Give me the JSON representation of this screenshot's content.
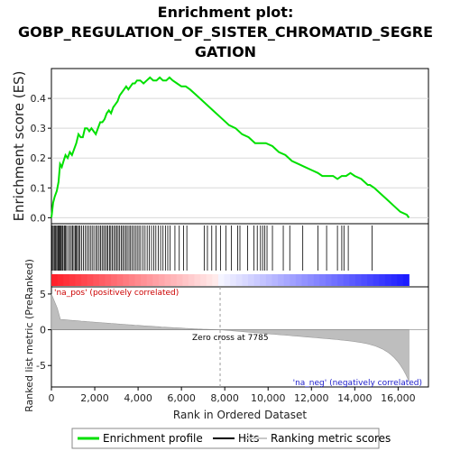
{
  "chart_data": {
    "type": "line",
    "title_lines": [
      "Enrichment plot:",
      "GOBP_REGULATION_OF_SISTER_CHROMATID_SEGRE",
      "GATION"
    ],
    "ylabel_top": "Enrichment score (ES)",
    "ylabel_bottom": "Ranked list metric (PreRanked)",
    "xlabel": "Rank in Ordered Dataset",
    "x_ticks": [
      0,
      2000,
      4000,
      6000,
      8000,
      10000,
      12000,
      14000,
      16000
    ],
    "x_tick_labels": [
      "0",
      "2,000",
      "4,000",
      "6,000",
      "8,000",
      "10,000",
      "12,000",
      "14,000",
      "16,000"
    ],
    "xlim": [
      0,
      17400
    ],
    "es_y_ticks": [
      0.0,
      0.1,
      0.2,
      0.3,
      0.4
    ],
    "es_y_tick_labels": [
      "0.0",
      "0.1",
      "0.2",
      "0.3",
      "0.4"
    ],
    "es_ylim": [
      -0.02,
      0.5
    ],
    "metric_y_ticks": [
      -5,
      0,
      5
    ],
    "metric_y_tick_labels": [
      "-5",
      "0",
      "5"
    ],
    "metric_ylim": [
      -8,
      6
    ],
    "n_genes": 16500,
    "zero_cross_rank": 7785,
    "annotations": {
      "zero_cross": "Zero cross at 7785",
      "pos_label": "'na_pos' (positively correlated)",
      "neg_label": "'na_neg' (negatively correlated)"
    },
    "legend": {
      "placement": "bottom",
      "items": [
        {
          "label": "Enrichment profile",
          "color": "#00e000"
        },
        {
          "label": "Hits",
          "color": "#000000"
        },
        {
          "label": "Ranking metric scores",
          "color": "#c8c8c8"
        }
      ]
    },
    "series": [
      {
        "name": "Enrichment profile",
        "color": "#00e000",
        "x": [
          0,
          80,
          150,
          250,
          330,
          400,
          480,
          560,
          650,
          750,
          850,
          950,
          1050,
          1150,
          1250,
          1350,
          1450,
          1550,
          1650,
          1750,
          1850,
          1950,
          2050,
          2150,
          2250,
          2350,
          2450,
          2550,
          2650,
          2750,
          2850,
          2950,
          3050,
          3150,
          3250,
          3350,
          3450,
          3550,
          3650,
          3750,
          3850,
          3950,
          4100,
          4250,
          4400,
          4550,
          4700,
          4850,
          5000,
          5150,
          5300,
          5450,
          5600,
          5800,
          6000,
          6200,
          6400,
          6700,
          7000,
          7300,
          7600,
          7900,
          8200,
          8500,
          8800,
          9100,
          9400,
          9700,
          9900,
          10200,
          10500,
          10800,
          11100,
          11400,
          11700,
          12000,
          12300,
          12500,
          12800,
          13000,
          13200,
          13400,
          13600,
          13800,
          14000,
          14300,
          14600,
          14700,
          14900,
          15200,
          15500,
          15800,
          16100,
          16400,
          16500
        ],
        "y": [
          0.0,
          0.05,
          0.07,
          0.09,
          0.12,
          0.18,
          0.17,
          0.19,
          0.21,
          0.2,
          0.22,
          0.21,
          0.23,
          0.25,
          0.28,
          0.27,
          0.27,
          0.3,
          0.3,
          0.29,
          0.3,
          0.29,
          0.28,
          0.3,
          0.32,
          0.32,
          0.33,
          0.35,
          0.36,
          0.35,
          0.37,
          0.38,
          0.39,
          0.41,
          0.42,
          0.43,
          0.44,
          0.43,
          0.44,
          0.45,
          0.45,
          0.46,
          0.46,
          0.45,
          0.46,
          0.47,
          0.46,
          0.46,
          0.47,
          0.46,
          0.46,
          0.47,
          0.46,
          0.45,
          0.44,
          0.44,
          0.43,
          0.41,
          0.39,
          0.37,
          0.35,
          0.33,
          0.31,
          0.3,
          0.28,
          0.27,
          0.25,
          0.25,
          0.25,
          0.24,
          0.22,
          0.21,
          0.19,
          0.18,
          0.17,
          0.16,
          0.15,
          0.14,
          0.14,
          0.14,
          0.13,
          0.14,
          0.14,
          0.15,
          0.14,
          0.13,
          0.11,
          0.11,
          0.1,
          0.08,
          0.06,
          0.04,
          0.02,
          0.01,
          0.0
        ]
      }
    ],
    "hits": [
      40,
      90,
      140,
      190,
      240,
      290,
      330,
      370,
      410,
      450,
      500,
      540,
      600,
      650,
      700,
      780,
      850,
      920,
      980,
      1040,
      1100,
      1150,
      1200,
      1260,
      1320,
      1400,
      1480,
      1560,
      1640,
      1720,
      1800,
      1880,
      1960,
      2050,
      2120,
      2200,
      2270,
      2340,
      2410,
      2480,
      2550,
      2610,
      2680,
      2740,
      2810,
      2880,
      2950,
      3010,
      3080,
      3150,
      3220,
      3290,
      3360,
      3430,
      3500,
      3580,
      3650,
      3720,
      3800,
      3880,
      3960,
      4040,
      4120,
      4220,
      4320,
      4420,
      4520,
      4620,
      4720,
      4820,
      4930,
      5040,
      5150,
      5260,
      5370,
      5480,
      5700,
      5900,
      6100,
      6250,
      7050,
      7200,
      7400,
      7600,
      7800,
      8050,
      8300,
      8600,
      8700,
      9050,
      9350,
      9500,
      9650,
      9750,
      9850,
      9950,
      10200,
      10700,
      11000,
      11600,
      12300,
      12700,
      13200,
      13400,
      13500,
      13700,
      14800
    ]
  }
}
